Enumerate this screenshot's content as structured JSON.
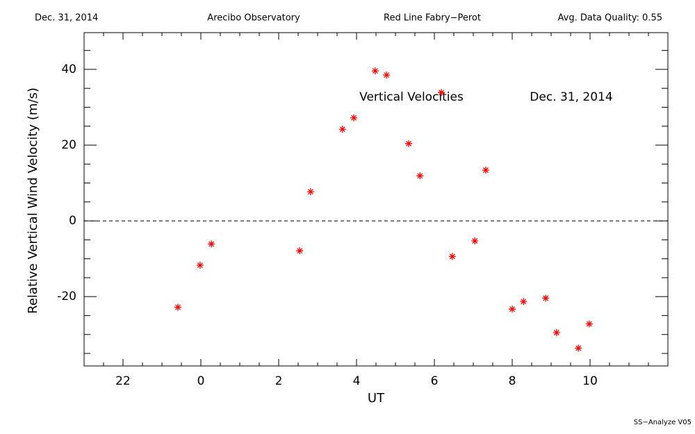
{
  "chart_data": {
    "type": "scatter",
    "header": [
      "Dec. 31, 2014",
      "Arecibo Observatory",
      "Red Line Fabry−Perot",
      "Avg. Data Quality: 0.55"
    ],
    "annotations": [
      "Vertical Velocities",
      "Dec. 31, 2014"
    ],
    "footer": "SS−Analyze V05",
    "x_label": "UT",
    "y_label": "Relative Vertical Wind Velocity (m/s)",
    "color": "#ff0000",
    "x": [
      -0.59,
      -0.02,
      0.27,
      2.54,
      2.82,
      3.64,
      3.93,
      4.48,
      4.77,
      5.34,
      5.63,
      6.18,
      6.46,
      7.04,
      7.32,
      8.0,
      8.29,
      8.86,
      9.14,
      9.7,
      9.98
    ],
    "values": [
      -22.8,
      -11.7,
      -6.1,
      -7.9,
      7.7,
      24.2,
      27.2,
      39.6,
      38.5,
      20.4,
      11.9,
      33.9,
      -9.4,
      -5.3,
      13.4,
      -23.3,
      -21.3,
      -20.4,
      -29.5,
      -33.6,
      -27.2
    ],
    "xlim": [
      -3,
      12
    ],
    "ylim": [
      -38.3,
      49.7
    ],
    "xticks": [
      {
        "value": -2,
        "label": "22"
      },
      0,
      2,
      4,
      6,
      8,
      10
    ],
    "yticks": [
      -20,
      0,
      20,
      40
    ],
    "xminor_ticks": [
      -2.5,
      -1.5,
      -1,
      -0.5,
      0.5,
      1,
      1.5,
      2.5,
      3,
      3.5,
      4.5,
      5,
      5.5,
      6.5,
      7,
      7.5,
      8.5,
      9,
      9.5,
      10.5,
      11,
      11.5
    ],
    "yminor_ticks": [
      -35,
      -30,
      -25,
      -15,
      -10,
      -5,
      5,
      10,
      15,
      25,
      30,
      35,
      45
    ],
    "zero_line": 0
  }
}
